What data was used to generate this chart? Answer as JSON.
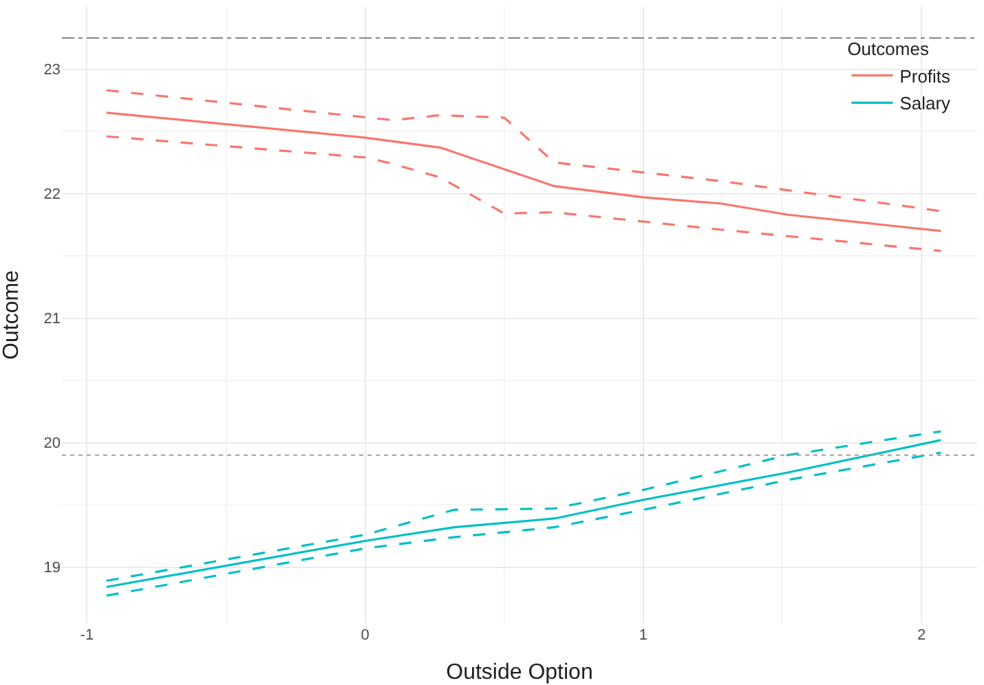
{
  "chart_data": {
    "type": "line",
    "xlabel": "Outside Option",
    "ylabel": "Outcome",
    "legend_title": "Outcomes",
    "xlim": [
      -1.09,
      2.2
    ],
    "xticks": [
      -1,
      0,
      1,
      2
    ],
    "ylim": [
      18.55,
      23.5
    ],
    "yticks": [
      19,
      20,
      21,
      22,
      23
    ],
    "grid": true,
    "legend": "top right",
    "marker": "none",
    "series": [
      {
        "name": "Profits",
        "color": "#f8766d",
        "line_style": "solid",
        "x": [
          -0.93,
          0,
          0.27,
          0.68,
          1.0,
          1.28,
          1.52,
          2.07
        ],
        "values": [
          22.65,
          22.45,
          22.37,
          22.06,
          21.97,
          21.92,
          21.83,
          21.7
        ]
      },
      {
        "color": "#f8766d",
        "line_style": "dashed",
        "x": [
          -0.93,
          0.1,
          0.27,
          0.5,
          0.68,
          1.28,
          2.07
        ],
        "values": [
          22.83,
          22.59,
          22.63,
          22.61,
          22.25,
          22.1,
          21.86
        ]
      },
      {
        "color": "#f8766d",
        "line_style": "dashed",
        "x": [
          -0.93,
          0,
          0.08,
          0.27,
          0.5,
          0.68,
          1.28,
          2.07
        ],
        "values": [
          22.46,
          22.29,
          22.25,
          22.13,
          21.84,
          21.85,
          21.71,
          21.54
        ]
      },
      {
        "name": "Salary",
        "color": "#00bfc4",
        "line_style": "solid",
        "x": [
          -0.93,
          0,
          0.32,
          0.68,
          1.0,
          1.52,
          2.07
        ],
        "values": [
          18.84,
          19.21,
          19.32,
          19.39,
          19.54,
          19.76,
          20.02
        ]
      },
      {
        "color": "#00bfc4",
        "line_style": "dashed",
        "x": [
          -0.93,
          0,
          0.32,
          0.68,
          1.0,
          1.52,
          2.07
        ],
        "values": [
          18.89,
          19.26,
          19.46,
          19.47,
          19.62,
          19.9,
          20.09
        ]
      },
      {
        "color": "#00bfc4",
        "line_style": "dashed",
        "x": [
          -0.93,
          0,
          0.32,
          0.68,
          1.0,
          1.52,
          2.07
        ],
        "values": [
          18.77,
          19.15,
          19.24,
          19.32,
          19.46,
          19.7,
          19.92
        ]
      }
    ],
    "ref_lines": [
      {
        "axis": "y",
        "value": 23.25,
        "line_style": "dashdot",
        "color": "#7f7f7f"
      },
      {
        "axis": "y",
        "value": 19.9,
        "line_style": "dotted",
        "color": "#9f9f9f"
      }
    ]
  }
}
